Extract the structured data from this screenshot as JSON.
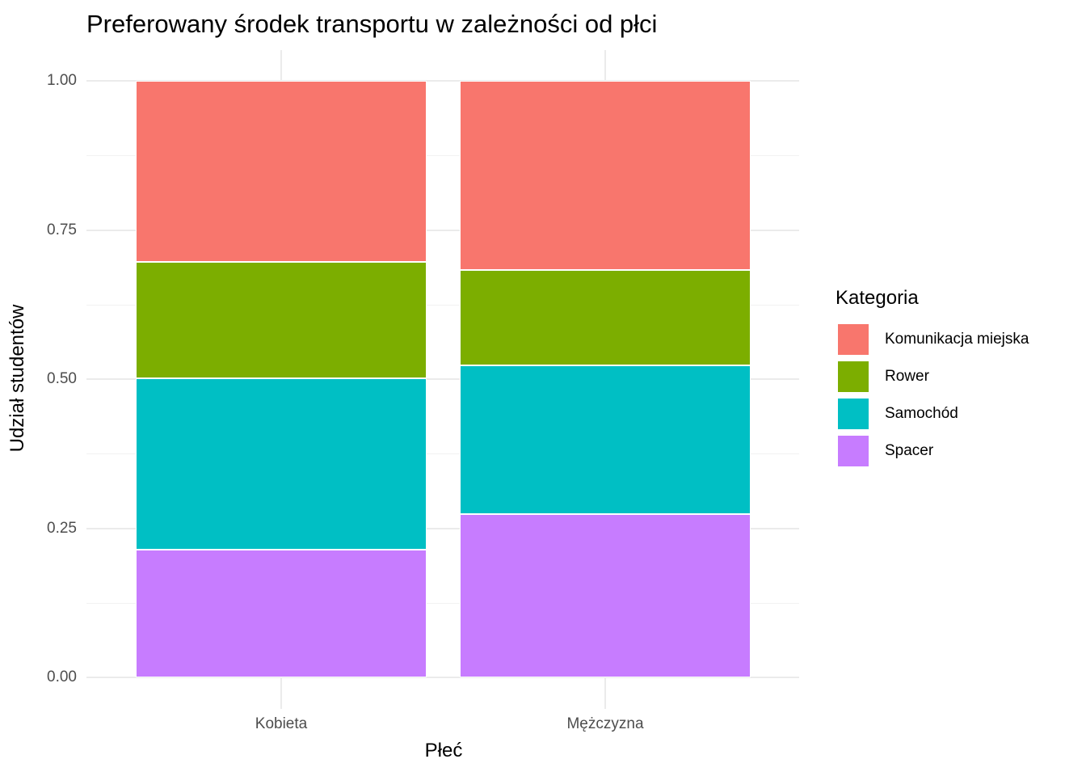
{
  "chart_data": {
    "type": "bar",
    "stacked": true,
    "position": "fill",
    "title": "Preferowany środek transportu w zależności od płci",
    "xlabel": "Płeć",
    "ylabel": "Udział studentów",
    "ylim": [
      0,
      1
    ],
    "yticks": [
      "0.00",
      "0.25",
      "0.50",
      "0.75",
      "1.00"
    ],
    "categories": [
      "Kobieta",
      "Mężczyzna"
    ],
    "legend_title": "Kategoria",
    "legend_position": "right",
    "grid": true,
    "series": [
      {
        "name": "Komunikacja miejska",
        "color": "#F8766D",
        "values": [
          0.304,
          0.317
        ]
      },
      {
        "name": "Rower",
        "color": "#7CAE00",
        "values": [
          0.195,
          0.16
        ]
      },
      {
        "name": "Samochód",
        "color": "#00BFC4",
        "values": [
          0.287,
          0.249
        ]
      },
      {
        "name": "Spacer",
        "color": "#C77CFF",
        "values": [
          0.214,
          0.274
        ]
      }
    ]
  }
}
